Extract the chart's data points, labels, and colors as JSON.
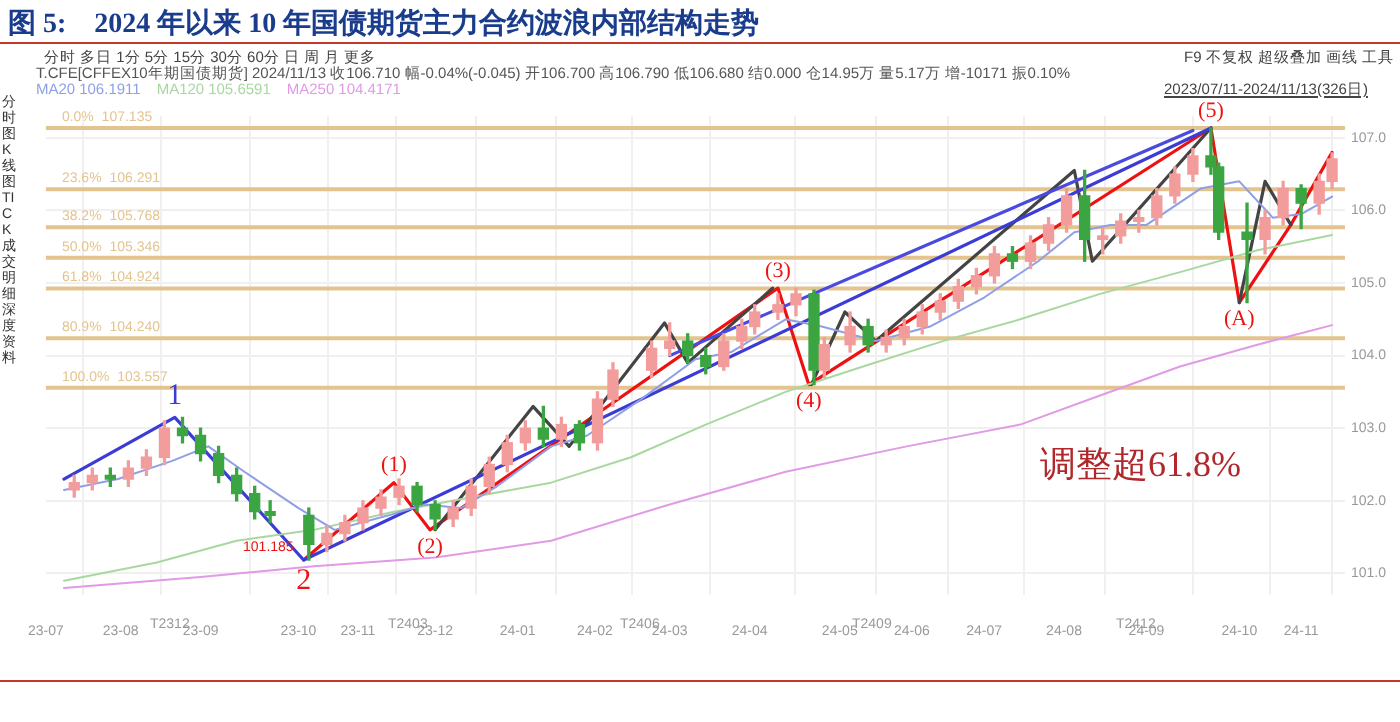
{
  "chart_data": {
    "type": "candlestick",
    "title": "图 5:    2024 年以来 10 年国债期货主力合约波浪内部结构走势",
    "x": [
      "2023-07-14",
      "2023-07-21",
      "2023-07-28",
      "2023-08-04",
      "2023-08-11",
      "2023-08-18",
      "2023-08-25",
      "2023-09-01",
      "2023-09-08",
      "2023-09-15",
      "2023-09-22",
      "2023-09-28",
      "2023-10-13",
      "2023-10-20",
      "2023-10-27",
      "2023-11-03",
      "2023-11-10",
      "2023-11-17",
      "2023-11-24",
      "2023-12-01",
      "2023-12-08",
      "2023-12-15",
      "2023-12-22",
      "2023-12-29",
      "2024-01-05",
      "2024-01-12",
      "2024-01-19",
      "2024-01-26",
      "2024-02-02",
      "2024-02-08",
      "2024-02-23",
      "2024-03-01",
      "2024-03-08",
      "2024-03-15",
      "2024-03-22",
      "2024-03-29",
      "2024-04-03",
      "2024-04-12",
      "2024-04-19",
      "2024-04-26",
      "2024-04-30",
      "2024-05-10",
      "2024-05-17",
      "2024-05-24",
      "2024-05-31",
      "2024-06-07",
      "2024-06-14",
      "2024-06-21",
      "2024-06-28",
      "2024-07-05",
      "2024-07-12",
      "2024-07-19",
      "2024-07-26",
      "2024-08-02",
      "2024-08-09",
      "2024-08-16",
      "2024-08-23",
      "2024-08-30",
      "2024-09-06",
      "2024-09-13",
      "2024-09-20",
      "2024-09-27",
      "2024-09-30",
      "2024-10-11",
      "2024-10-18",
      "2024-10-25",
      "2024-11-01",
      "2024-11-08",
      "2024-11-13"
    ],
    "ohlc": [
      [
        102.15,
        102.35,
        102.05,
        102.25
      ],
      [
        102.25,
        102.45,
        102.15,
        102.35
      ],
      [
        102.35,
        102.45,
        102.2,
        102.3
      ],
      [
        102.3,
        102.55,
        102.2,
        102.45
      ],
      [
        102.45,
        102.7,
        102.35,
        102.6
      ],
      [
        102.6,
        103.1,
        102.5,
        103.0
      ],
      [
        103.0,
        103.15,
        102.8,
        102.9
      ],
      [
        102.9,
        103.0,
        102.55,
        102.65
      ],
      [
        102.65,
        102.75,
        102.25,
        102.35
      ],
      [
        102.35,
        102.45,
        102.0,
        102.1
      ],
      [
        102.1,
        102.2,
        101.75,
        101.85
      ],
      [
        101.85,
        102.0,
        101.7,
        101.8
      ],
      [
        101.8,
        101.9,
        101.185,
        101.4
      ],
      [
        101.4,
        101.65,
        101.3,
        101.55
      ],
      [
        101.55,
        101.8,
        101.45,
        101.7
      ],
      [
        101.7,
        102.0,
        101.6,
        101.9
      ],
      [
        101.9,
        102.15,
        101.8,
        102.05
      ],
      [
        102.05,
        102.3,
        101.95,
        102.2
      ],
      [
        102.2,
        102.25,
        101.85,
        101.95
      ],
      [
        101.95,
        102.0,
        101.6,
        101.75
      ],
      [
        101.75,
        102.0,
        101.65,
        101.9
      ],
      [
        101.9,
        102.3,
        101.8,
        102.2
      ],
      [
        102.2,
        102.6,
        102.1,
        102.5
      ],
      [
        102.5,
        102.9,
        102.4,
        102.8
      ],
      [
        102.8,
        103.1,
        102.7,
        103.0
      ],
      [
        103.0,
        103.3,
        102.75,
        102.85
      ],
      [
        102.85,
        103.15,
        102.75,
        103.05
      ],
      [
        103.05,
        103.1,
        102.7,
        102.8
      ],
      [
        102.8,
        103.5,
        102.7,
        103.4
      ],
      [
        103.4,
        103.9,
        103.3,
        103.8
      ],
      [
        103.8,
        104.2,
        103.7,
        104.1
      ],
      [
        104.1,
        104.45,
        104.0,
        104.2
      ],
      [
        104.2,
        104.3,
        103.9,
        104.0
      ],
      [
        104.0,
        104.1,
        103.75,
        103.85
      ],
      [
        103.85,
        104.3,
        103.8,
        104.2
      ],
      [
        104.2,
        104.5,
        104.1,
        104.4
      ],
      [
        104.4,
        104.7,
        104.3,
        104.6
      ],
      [
        104.6,
        104.85,
        104.5,
        104.7
      ],
      [
        104.7,
        104.93,
        104.55,
        104.85
      ],
      [
        104.85,
        104.9,
        103.6,
        103.8
      ],
      [
        103.8,
        104.25,
        103.7,
        104.15
      ],
      [
        104.15,
        104.6,
        104.05,
        104.4
      ],
      [
        104.4,
        104.5,
        104.05,
        104.15
      ],
      [
        104.15,
        104.35,
        104.05,
        104.25
      ],
      [
        104.25,
        104.5,
        104.15,
        104.4
      ],
      [
        104.4,
        104.7,
        104.3,
        104.6
      ],
      [
        104.6,
        104.85,
        104.5,
        104.75
      ],
      [
        104.75,
        105.05,
        104.65,
        104.95
      ],
      [
        104.95,
        105.2,
        104.85,
        105.1
      ],
      [
        105.1,
        105.5,
        105.0,
        105.4
      ],
      [
        105.4,
        105.5,
        105.2,
        105.3
      ],
      [
        105.3,
        105.65,
        105.2,
        105.55
      ],
      [
        105.55,
        105.9,
        105.45,
        105.8
      ],
      [
        105.8,
        106.3,
        105.7,
        106.2
      ],
      [
        106.2,
        106.55,
        105.3,
        105.6
      ],
      [
        105.6,
        105.75,
        105.4,
        105.65
      ],
      [
        105.65,
        105.95,
        105.55,
        105.85
      ],
      [
        105.85,
        106.0,
        105.7,
        105.9
      ],
      [
        105.9,
        106.3,
        105.8,
        106.2
      ],
      [
        106.2,
        106.6,
        106.1,
        106.5
      ],
      [
        106.5,
        106.85,
        106.4,
        106.75
      ],
      [
        106.75,
        107.135,
        106.5,
        106.6
      ],
      [
        106.6,
        106.65,
        105.6,
        105.7
      ],
      [
        105.7,
        106.1,
        104.73,
        105.6
      ],
      [
        105.6,
        106.0,
        105.4,
        105.9
      ],
      [
        105.9,
        106.4,
        105.8,
        106.3
      ],
      [
        106.3,
        106.35,
        105.75,
        106.1
      ],
      [
        106.1,
        106.5,
        105.95,
        106.4
      ],
      [
        106.4,
        106.79,
        106.3,
        106.71
      ]
    ],
    "colors": [
      "#f29c9c",
      "#f29c9c",
      "#3aa541",
      "#f29c9c",
      "#f29c9c",
      "#f29c9c",
      "#3aa541",
      "#3aa541",
      "#3aa541",
      "#3aa541",
      "#3aa541",
      "#3aa541",
      "#3aa541",
      "#f29c9c",
      "#f29c9c",
      "#f29c9c",
      "#f29c9c",
      "#f29c9c",
      "#3aa541",
      "#3aa541",
      "#f29c9c",
      "#f29c9c",
      "#f29c9c",
      "#f29c9c",
      "#f29c9c",
      "#3aa541",
      "#f29c9c",
      "#3aa541",
      "#f29c9c",
      "#f29c9c",
      "#f29c9c",
      "#f29c9c",
      "#3aa541",
      "#3aa541",
      "#f29c9c",
      "#f29c9c",
      "#f29c9c",
      "#f29c9c",
      "#f29c9c",
      "#3aa541",
      "#f29c9c",
      "#f29c9c",
      "#3aa541",
      "#f29c9c",
      "#f29c9c",
      "#f29c9c",
      "#f29c9c",
      "#f29c9c",
      "#f29c9c",
      "#f29c9c",
      "#3aa541",
      "#f29c9c",
      "#f29c9c",
      "#f29c9c",
      "#3aa541",
      "#f29c9c",
      "#f29c9c",
      "#f29c9c",
      "#f29c9c",
      "#f29c9c",
      "#f29c9c",
      "#3aa541",
      "#3aa541",
      "#3aa541",
      "#f29c9c",
      "#f29c9c",
      "#3aa541",
      "#f29c9c",
      "#f29c9c"
    ],
    "series": [
      {
        "type": "line",
        "name": "MA20",
        "color": "#8f9fe6",
        "x": [
          "2023-07-10",
          "2023-07-31",
          "2023-08-21",
          "2023-09-04",
          "2023-09-18",
          "2023-10-09",
          "2023-10-23",
          "2023-11-13",
          "2023-11-27",
          "2023-12-11",
          "2023-12-25",
          "2024-01-15",
          "2024-01-29",
          "2024-02-19",
          "2024-03-11",
          "2024-03-25",
          "2024-04-15",
          "2024-04-29",
          "2024-05-20",
          "2024-06-10",
          "2024-07-01",
          "2024-07-22",
          "2024-08-05",
          "2024-08-19",
          "2024-09-02",
          "2024-09-23",
          "2024-10-08",
          "2024-10-21",
          "2024-11-01",
          "2024-11-13"
        ],
        "values": [
          102.15,
          102.3,
          102.55,
          102.75,
          102.4,
          101.9,
          101.6,
          101.8,
          101.95,
          101.9,
          102.2,
          102.75,
          102.9,
          103.4,
          103.95,
          104.05,
          104.5,
          104.4,
          104.2,
          104.4,
          104.8,
          105.3,
          105.7,
          105.8,
          105.8,
          106.3,
          106.4,
          105.9,
          105.95,
          106.19
        ]
      },
      {
        "type": "line",
        "name": "MA120",
        "color": "#a8d8a0",
        "x": [
          "2023-07-10",
          "2023-08-15",
          "2023-09-15",
          "2023-10-15",
          "2023-11-15",
          "2023-12-15",
          "2024-01-15",
          "2024-02-15",
          "2024-03-15",
          "2024-04-15",
          "2024-05-15",
          "2024-06-15",
          "2024-07-15",
          "2024-08-15",
          "2024-09-15",
          "2024-10-15",
          "2024-11-13"
        ],
        "values": [
          100.9,
          101.15,
          101.45,
          101.6,
          101.85,
          102.05,
          102.25,
          102.6,
          103.05,
          103.5,
          103.85,
          104.2,
          104.5,
          104.85,
          105.15,
          105.45,
          105.66
        ]
      },
      {
        "type": "line",
        "name": "MA250",
        "color": "#e09ae6",
        "x": [
          "2023-07-10",
          "2023-09-01",
          "2023-10-15",
          "2023-12-01",
          "2024-01-15",
          "2024-03-01",
          "2024-04-15",
          "2024-06-01",
          "2024-07-15",
          "2024-08-15",
          "2024-09-15",
          "2024-10-15",
          "2024-11-13"
        ],
        "values": [
          100.8,
          100.95,
          101.1,
          101.22,
          101.45,
          101.95,
          102.4,
          102.75,
          103.05,
          103.45,
          103.85,
          104.15,
          104.42
        ]
      },
      {
        "type": "line",
        "color": "#4a4ae0",
        "x": [
          "2024-03-01",
          "2024-09-20"
        ],
        "values": [
          104.0,
          107.1
        ]
      },
      {
        "type": "line",
        "color": "#3b3bd6",
        "x": [
          "2023-07-10",
          "2023-08-22",
          "2023-10-11",
          "2024-09-27"
        ],
        "values": [
          102.3,
          103.15,
          101.185,
          107.135
        ]
      },
      {
        "type": "line",
        "color": "#444444",
        "x": [
          "2023-12-01",
          "2024-01-08",
          "2024-01-22",
          "2024-02-28",
          "2024-03-08",
          "2024-04-10",
          "2024-04-18",
          "2024-04-25",
          "2024-05-08",
          "2024-05-20",
          "2024-08-05",
          "2024-08-12",
          "2024-09-27",
          "2024-10-01",
          "2024-10-08",
          "2024-10-18",
          "2024-10-28"
        ],
        "values": [
          101.6,
          103.3,
          102.75,
          104.45,
          103.9,
          104.93,
          null,
          103.6,
          104.6,
          104.2,
          106.55,
          105.3,
          107.135,
          null,
          104.73,
          106.4,
          105.8
        ]
      },
      {
        "type": "line",
        "color": "#ee1111",
        "x": [
          "2023-10-11",
          "2023-11-15",
          "2023-11-29",
          "2024-04-12",
          "2024-04-24",
          "2024-09-27",
          "2024-10-08",
          "2024-10-28",
          "2024-11-13"
        ],
        "values": [
          101.185,
          102.25,
          101.6,
          104.93,
          103.6,
          107.135,
          104.73,
          105.8,
          106.8
        ]
      }
    ],
    "xlim": [
      "2023-07-03",
      "2024-11-18"
    ],
    "xticks": [
      {
        "value": "2023-07-03",
        "label": "23-07"
      },
      {
        "value": "2023-08-01",
        "label": "23-08"
      },
      {
        "value": "2023-09-01",
        "label": "23-09"
      },
      {
        "value": "2023-10-09",
        "label": "23-10"
      },
      {
        "value": "2023-11-01",
        "label": "23-11"
      },
      {
        "value": "2023-12-01",
        "label": "23-12"
      },
      {
        "value": "2024-01-02",
        "label": "24-01"
      },
      {
        "value": "2024-02-01",
        "label": "24-02"
      },
      {
        "value": "2024-03-01",
        "label": "24-03"
      },
      {
        "value": "2024-04-01",
        "label": "24-04"
      },
      {
        "value": "2024-05-06",
        "label": "24-05"
      },
      {
        "value": "2024-06-03",
        "label": "24-06"
      },
      {
        "value": "2024-07-01",
        "label": "24-07"
      },
      {
        "value": "2024-08-01",
        "label": "24-08"
      },
      {
        "value": "2024-09-02",
        "label": "24-09"
      },
      {
        "value": "2024-10-08",
        "label": "24-10"
      },
      {
        "value": "2024-11-01",
        "label": "24-11"
      }
    ],
    "ylim": [
      100.7,
      107.3
    ],
    "yticks": [
      {
        "value": 101,
        "label": "101.0"
      },
      {
        "value": 102,
        "label": "102.0"
      },
      {
        "value": 103,
        "label": "103.0"
      },
      {
        "value": 104,
        "label": "104.0"
      },
      {
        "value": 105,
        "label": "105.0"
      },
      {
        "value": 106,
        "label": "106.0"
      },
      {
        "value": 107,
        "label": "107.0"
      }
    ],
    "ref_lines": [
      {
        "axis": "y",
        "value": 107.135,
        "label": "0.0%  107.135",
        "color": "#e3c48f"
      },
      {
        "axis": "y",
        "value": 106.291,
        "label": "23.6%  106.291",
        "color": "#e3c48f"
      },
      {
        "axis": "y",
        "value": 105.768,
        "label": "38.2%  105.768",
        "color": "#e3c48f"
      },
      {
        "axis": "y",
        "value": 105.346,
        "label": "50.0%  105.346",
        "color": "#e3c48f"
      },
      {
        "axis": "y",
        "value": 104.924,
        "label": "61.8%  104.924",
        "color": "#e3c48f"
      },
      {
        "axis": "y",
        "value": 104.24,
        "label": "80.9%  104.240",
        "color": "#e3c48f"
      },
      {
        "axis": "y",
        "value": 103.557,
        "label": "100.0%  103.557",
        "color": "#e3c48f"
      }
    ],
    "annotations": [
      "分时 多日 1分 5分 15分 30分 60分 日 周 月 更多",
      "F9 不复权 超级叠加 画线 工具",
      "T.CFE[CFFEX10年期国债期货] 2024/11/13 收106.710 幅-0.04%(-0.045) 开106.700 高106.790 低106.680 结0.000 仓14.95万 量5.17万 增-10171 振0.10%",
      "2023/07/11-2024/11/13(326日)",
      "分时图K线图TICK成交明细深度资料",
      "106.1911",
      "105.6591",
      "104.4171",
      "调整超61.8%",
      "T2312",
      "T2403",
      "T2406",
      "T2409",
      "T2412",
      {
        "text": "1",
        "x": "2023-08-22",
        "y": 103.15
      },
      {
        "text": "2",
        "x": "2023-10-11",
        "y": 101.185
      },
      {
        "text": "101.185",
        "x": "2023-10-11",
        "y": 101.185
      },
      {
        "text": "(1)",
        "x": "2023-11-15",
        "y": 102.25
      },
      {
        "text": "(2)",
        "x": "2023-11-29",
        "y": 101.6
      },
      {
        "text": "(3)",
        "x": "2024-04-12",
        "y": 104.93
      },
      {
        "text": "(4)",
        "x": "2024-04-24",
        "y": 103.6
      },
      {
        "text": "(5)",
        "x": "2024-09-27",
        "y": 107.135
      },
      {
        "text": "(A)",
        "x": "2024-10-08",
        "y": 104.73
      }
    ],
    "grid": true,
    "legend": "top left",
    "marker": "none"
  }
}
